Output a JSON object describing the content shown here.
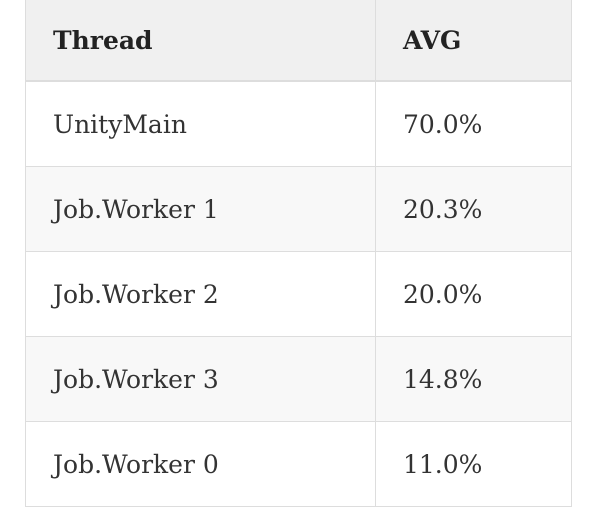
{
  "table": {
    "header": [
      "Thread",
      "AVG"
    ],
    "rows": [
      [
        "UnityMain",
        "70.0%"
      ],
      [
        "Job.Worker 1",
        "20.3%"
      ],
      [
        "Job.Worker 2",
        "20.0%"
      ],
      [
        "Job.Worker 3",
        "14.8%"
      ],
      [
        "Job.Worker 0",
        "11.0%"
      ]
    ]
  }
}
